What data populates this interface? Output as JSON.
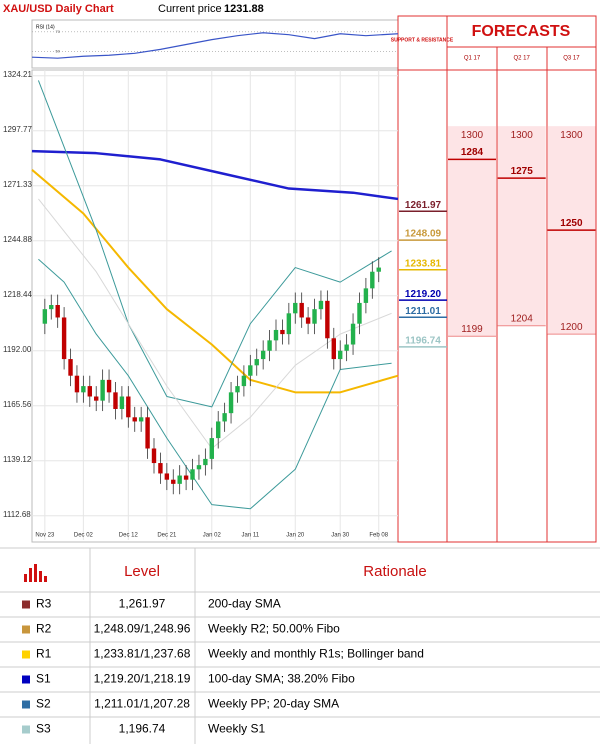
{
  "header": {
    "title": "XAU/USD Daily Chart",
    "price_label": "Current price",
    "price": 1231.88
  },
  "chart_data": [
    {
      "type": "line",
      "title": "RSI (14)",
      "color": "#3a55c8",
      "x": [
        -2,
        2,
        6,
        10,
        14,
        18,
        22,
        26,
        30,
        34,
        38,
        42,
        46,
        50,
        55
      ],
      "values": [
        44,
        43,
        45,
        46,
        48,
        52,
        57,
        62,
        66,
        69,
        67,
        63,
        68,
        66,
        68
      ],
      "xlim": [
        -2,
        55
      ],
      "ylim": [
        35,
        80
      ],
      "yticks": [
        50,
        70
      ]
    },
    {
      "type": "candlestick",
      "up_color": "#22b14c",
      "down_color": "#c00000",
      "grid": true,
      "categories": [
        "Nov 23",
        null,
        null,
        null,
        null,
        null,
        "Dec 02",
        null,
        null,
        null,
        null,
        null,
        null,
        "Dec 12",
        null,
        null,
        null,
        null,
        null,
        "Dec 21",
        null,
        null,
        null,
        null,
        null,
        null,
        "Jan 02",
        null,
        null,
        null,
        null,
        null,
        "Jan 11",
        null,
        null,
        null,
        null,
        null,
        null,
        "Jan 20",
        null,
        null,
        null,
        null,
        null,
        null,
        "Jan 30",
        null,
        null,
        null,
        null,
        null,
        "Feb 08"
      ],
      "open": [
        1205,
        1212,
        1214,
        1208,
        1188,
        1180,
        1172,
        1175,
        1170,
        1168,
        1178,
        1172,
        1164,
        1170,
        1160,
        1158,
        1160,
        1145,
        1138,
        1133,
        1130,
        1128,
        1132,
        1130,
        1135,
        1137,
        1140,
        1150,
        1158,
        1162,
        1172,
        1175,
        1180,
        1185,
        1188,
        1192,
        1197,
        1202,
        1200,
        1210,
        1215,
        1208,
        1205,
        1212,
        1216,
        1198,
        1188,
        1192,
        1195,
        1205,
        1215,
        1222,
        1230
      ],
      "high": [
        1217,
        1219,
        1219,
        1213,
        1193,
        1185,
        1180,
        1180,
        1175,
        1183,
        1183,
        1177,
        1175,
        1175,
        1165,
        1165,
        1165,
        1150,
        1143,
        1138,
        1135,
        1137,
        1137,
        1140,
        1142,
        1145,
        1155,
        1163,
        1167,
        1177,
        1180,
        1185,
        1190,
        1193,
        1197,
        1202,
        1207,
        1207,
        1215,
        1220,
        1220,
        1213,
        1217,
        1221,
        1221,
        1203,
        1197,
        1200,
        1210,
        1220,
        1227,
        1235,
        1237
      ],
      "low": [
        1200,
        1207,
        1203,
        1183,
        1175,
        1167,
        1167,
        1165,
        1163,
        1163,
        1167,
        1159,
        1159,
        1155,
        1153,
        1153,
        1140,
        1133,
        1128,
        1125,
        1123,
        1123,
        1125,
        1125,
        1130,
        1132,
        1135,
        1145,
        1153,
        1157,
        1167,
        1170,
        1175,
        1180,
        1183,
        1187,
        1192,
        1195,
        1195,
        1205,
        1203,
        1200,
        1200,
        1207,
        1193,
        1183,
        1183,
        1187,
        1190,
        1200,
        1210,
        1217,
        1225
      ],
      "close": [
        1212,
        1214,
        1208,
        1188,
        1180,
        1172,
        1175,
        1170,
        1168,
        1178,
        1172,
        1164,
        1170,
        1160,
        1158,
        1160,
        1145,
        1138,
        1133,
        1130,
        1128,
        1132,
        1130,
        1135,
        1137,
        1140,
        1150,
        1158,
        1162,
        1172,
        1175,
        1180,
        1185,
        1188,
        1192,
        1197,
        1202,
        1200,
        1210,
        1215,
        1208,
        1205,
        1212,
        1216,
        1198,
        1188,
        1192,
        1195,
        1205,
        1215,
        1222,
        1230,
        1232
      ],
      "series": [
        {
          "color": "#1f1fcf",
          "width": 2.5,
          "x": [
            -2,
            8,
            18,
            28,
            38,
            48,
            55
          ],
          "values": [
            1288,
            1287,
            1284,
            1277,
            1270,
            1268,
            1265
          ]
        },
        {
          "color": "#f5b800",
          "width": 2,
          "x": [
            -2,
            6,
            13,
            19,
            26,
            32,
            39,
            46,
            55
          ],
          "values": [
            1279,
            1258,
            1232,
            1212,
            1195,
            1178,
            1172,
            1172,
            1180
          ]
        },
        {
          "color": "#3c9a9a",
          "width": 1,
          "x": [
            -1,
            3,
            8,
            13,
            19,
            26,
            32,
            39,
            46,
            54
          ],
          "values": [
            1322,
            1290,
            1250,
            1205,
            1170,
            1165,
            1205,
            1232,
            1225,
            1240
          ]
        },
        {
          "color": "#3c9a9a",
          "width": 1,
          "x": [
            -1,
            3,
            8,
            13,
            19,
            26,
            32,
            39,
            46,
            54
          ],
          "values": [
            1236,
            1225,
            1200,
            1180,
            1150,
            1118,
            1116,
            1135,
            1183,
            1186
          ]
        },
        {
          "color": "#d8d8d8",
          "width": 1,
          "x": [
            -1,
            8,
            19,
            26,
            32,
            39,
            46,
            54
          ],
          "values": [
            1265,
            1230,
            1175,
            1145,
            1160,
            1185,
            1200,
            1210
          ]
        }
      ],
      "xlim": [
        -2,
        55
      ],
      "ylim": [
        1101,
        1327
      ],
      "yticks": [
        1324.21,
        1297.77,
        1271.33,
        1244.88,
        1218.44,
        {
          "value": 1192,
          "label": "1192.00"
        },
        1165.56,
        1139.12,
        1112.68
      ]
    }
  ],
  "support_resistance": {
    "title": "SUPPORT & RESISTANCE",
    "values": [
      1261.97,
      1248.09,
      1233.81,
      1219.2,
      1211.01,
      1196.74
    ],
    "value_labels": [
      "1261.97",
      "1248.09",
      "1233.81",
      "1219.20",
      "1211.01",
      "1196.74"
    ],
    "colors": [
      "#7a1f2b",
      "#c89a3c",
      "#e6b800",
      "#0000b0",
      "#2e6da4",
      "#9cc5c5"
    ]
  },
  "forecasts": {
    "title": "FORECASTS",
    "quarters": [
      "Q1 17",
      "Q2 17",
      "Q3 17"
    ],
    "max": [
      1300,
      1300,
      1300
    ],
    "avg": [
      1284,
      1275,
      1250
    ],
    "min": [
      1199,
      1204,
      1200
    ]
  },
  "table": {
    "headers": [
      "Level",
      "Rationale"
    ],
    "rows": [
      {
        "code": "R3",
        "level": "1,261.97",
        "rationale": "200-day SMA",
        "color": "#8b2d2d"
      },
      {
        "code": "R2",
        "level": "1,248.09/1,248.96",
        "rationale": "Weekly R2; 50.00% Fibo",
        "color": "#c8963c"
      },
      {
        "code": "R1",
        "level": "1,233.81/1,237.68",
        "rationale": "Weekly and monthly R1s; Bollinger band",
        "color": "#ffd200"
      },
      {
        "code": "S1",
        "level": "1,219.20/1,218.19",
        "rationale": "100-day SMA; 38.20% Fibo",
        "color": "#0000c0"
      },
      {
        "code": "S2",
        "level": "1,211.01/1,207.28",
        "rationale": "Weekly PP; 20-day SMA",
        "color": "#2e6da4"
      },
      {
        "code": "S3",
        "level": "1,196.74",
        "rationale": "Weekly S1",
        "color": "#a6cccc"
      }
    ]
  }
}
